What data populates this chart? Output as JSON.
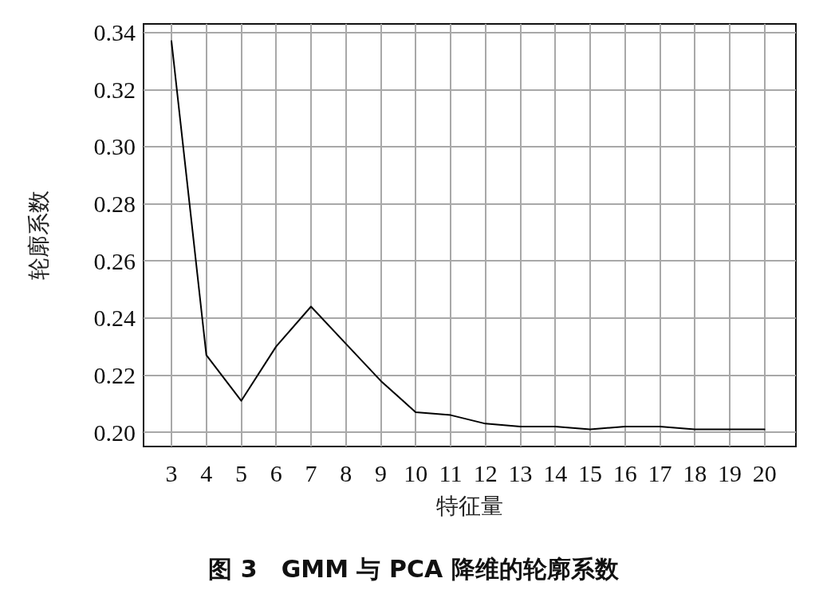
{
  "chart_data": {
    "type": "line",
    "title": "图 3　GMM 与 PCA 降维的轮廓系数",
    "xlabel": "特征量",
    "ylabel": "轮廓系数",
    "x": [
      3,
      4,
      5,
      6,
      7,
      8,
      9,
      10,
      11,
      12,
      13,
      14,
      15,
      16,
      17,
      18,
      19,
      20
    ],
    "series": [
      {
        "color": "#000000",
        "values": [
          0.337,
          0.227,
          0.211,
          0.23,
          0.244,
          0.231,
          0.218,
          0.207,
          0.206,
          0.203,
          0.202,
          0.202,
          0.201,
          0.202,
          0.202,
          0.201,
          0.201,
          0.201
        ]
      }
    ],
    "xlim": [
      2.2,
      20.9
    ],
    "xticks": [
      3,
      4,
      5,
      6,
      7,
      8,
      9,
      10,
      11,
      12,
      13,
      14,
      15,
      16,
      17,
      18,
      19,
      20
    ],
    "ylim": [
      0.195,
      0.343
    ],
    "yticks": [
      {
        "value": 0.2,
        "label": "0.20"
      },
      {
        "value": 0.22,
        "label": "0.22"
      },
      {
        "value": 0.24,
        "label": "0.24"
      },
      {
        "value": 0.26,
        "label": "0.26"
      },
      {
        "value": 0.28,
        "label": "0.28"
      },
      {
        "value": 0.3,
        "label": "0.30"
      },
      {
        "value": 0.32,
        "label": "0.32"
      },
      {
        "value": 0.34,
        "label": "0.34"
      }
    ],
    "grid": true,
    "marker": "none",
    "line_style": "solid"
  }
}
